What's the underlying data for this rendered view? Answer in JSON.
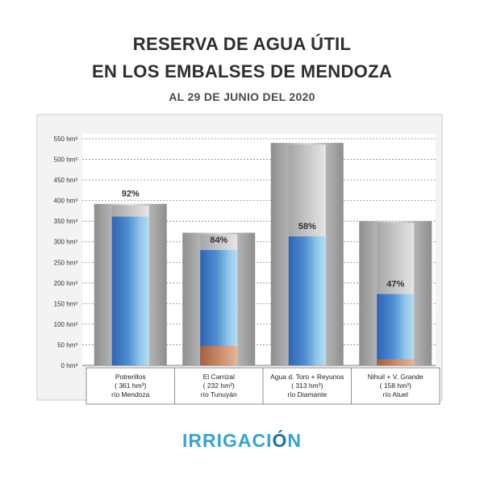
{
  "header": {
    "title_line1": "RESERVA DE AGUA ÚTIL",
    "title_line2": "EN LOS EMBALSES DE MENDOZA",
    "subtitle": "AL 29 DE JUNIO DEL 2020"
  },
  "colors": {
    "water_blue": "#3a78c2",
    "water_light": "#9fd0ea",
    "sediment": "#b3734f",
    "tank_gray": "#a9a9a9",
    "logo_color": "#36a3d2"
  },
  "chart_data": {
    "type": "bar",
    "title": "RESERVA DE AGUA ÚTIL EN LOS EMBALSES DE MENDOZA",
    "subtitle": "AL 29 DE JUNIO DEL 2020",
    "unit": "hm³",
    "ylim": [
      0,
      550
    ],
    "yticks": [
      0,
      50,
      100,
      150,
      200,
      250,
      300,
      350,
      400,
      450,
      500,
      550
    ],
    "ytick_labels": [
      "0 hm³",
      "50 hm³",
      "100 hm³",
      "150 hm³",
      "200 hm³",
      "250 hm³",
      "300 hm³",
      "350 hm³",
      "400 hm³",
      "450 hm³",
      "500 hm³",
      "550 hm³"
    ],
    "grid": true,
    "categories": [
      {
        "name": "Potrerillos",
        "detail": "( 361 hm³)",
        "river": "río Mendoza"
      },
      {
        "name": "El Carrizal",
        "detail": "( 232 hm³)",
        "river": "río Tunuyán"
      },
      {
        "name": "Agua d. Toro + Reyunos",
        "detail": "( 313 hm³)",
        "river": "río Diamante"
      },
      {
        "name": "Nihuil + V. Grande",
        "detail": "( 158 hm³)",
        "river": "río Atuel"
      }
    ],
    "capacity": [
      392,
      322,
      540,
      350
    ],
    "stored": [
      361,
      280,
      313,
      173
    ],
    "sediment": [
      0,
      47,
      0,
      15
    ],
    "percent_labels": [
      "92%",
      "84%",
      "58%",
      "47%"
    ]
  },
  "footer": {
    "logo_prefix": "IRRIGACI",
    "logo_wave_letter": "Ó",
    "logo_suffix": "N"
  }
}
